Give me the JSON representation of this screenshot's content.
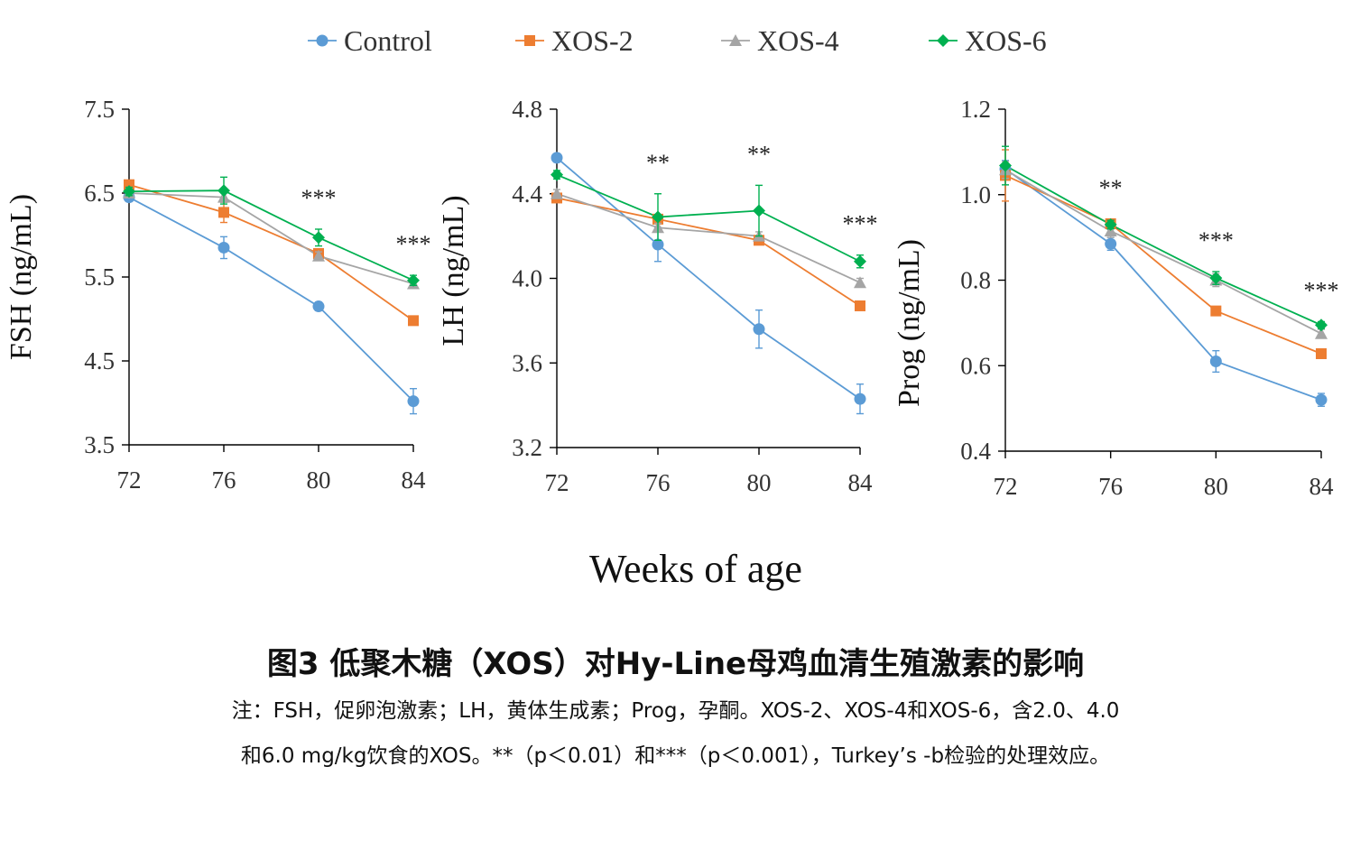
{
  "colors": {
    "control": "#5B9BD5",
    "xos2": "#ED7D31",
    "xos4": "#A5A5A5",
    "xos6": "#00B050",
    "axis": "#000000"
  },
  "legend": [
    "Control",
    "XOS-2",
    "XOS-4",
    "XOS-6"
  ],
  "shared_xlabel": "Weeks of age",
  "caption": {
    "title": "图3 低聚木糖（XOS）对Hy-Line母鸡血清生殖激素的影响",
    "note_line1": "注：FSH，促卵泡激素；LH，黄体生成素；Prog，孕酮。XOS-2、XOS-4和XOS-6，含2.0、4.0",
    "note_line2": "和6.0 mg/kg饮食的XOS。**（p＜0.01）和***（p＜0.001），Turkey’s -b检验的处理效应。"
  },
  "chart_data": [
    {
      "type": "line",
      "ylabel": "FSH (ng/mL)",
      "x": [
        72,
        76,
        80,
        84
      ],
      "ylim": [
        3.5,
        7.5
      ],
      "yticks": [
        "3.5",
        "4.5",
        "5.5",
        "6.5",
        "7.5"
      ],
      "series": [
        {
          "name": "Control",
          "values": [
            6.45,
            5.85,
            5.15,
            4.02
          ],
          "errors": [
            0.05,
            0.13,
            0.05,
            0.15
          ]
        },
        {
          "name": "XOS-2",
          "values": [
            6.6,
            6.27,
            5.78,
            4.98
          ],
          "errors": [
            0.05,
            0.12,
            0.05,
            0.04
          ]
        },
        {
          "name": "XOS-4",
          "values": [
            6.5,
            6.45,
            5.75,
            5.42
          ],
          "errors": [
            0.05,
            0.06,
            0.05,
            0.04
          ]
        },
        {
          "name": "XOS-6",
          "values": [
            6.52,
            6.53,
            5.97,
            5.46
          ],
          "errors": [
            0.05,
            0.16,
            0.1,
            0.06
          ]
        }
      ],
      "annotations": [
        {
          "x": 80,
          "text": "***"
        },
        {
          "x": 84,
          "text": "***"
        }
      ]
    },
    {
      "type": "line",
      "ylabel": "LH (ng/mL)",
      "x": [
        72,
        76,
        80,
        84
      ],
      "ylim": [
        3.2,
        4.8
      ],
      "yticks": [
        "3.2",
        "3.6",
        "4.0",
        "4.4",
        "4.8"
      ],
      "series": [
        {
          "name": "Control",
          "values": [
            4.57,
            4.16,
            3.76,
            3.43
          ],
          "errors": [
            0.02,
            0.08,
            0.09,
            0.07
          ]
        },
        {
          "name": "XOS-2",
          "values": [
            4.38,
            4.28,
            4.18,
            3.87
          ],
          "errors": [
            0.02,
            0.02,
            0.02,
            0.02
          ]
        },
        {
          "name": "XOS-4",
          "values": [
            4.4,
            4.24,
            4.2,
            3.98
          ],
          "errors": [
            0.02,
            0.02,
            0.02,
            0.02
          ]
        },
        {
          "name": "XOS-6",
          "values": [
            4.49,
            4.29,
            4.32,
            4.08
          ],
          "errors": [
            0.02,
            0.11,
            0.12,
            0.03
          ]
        }
      ],
      "annotations": [
        {
          "x": 76,
          "text": "**"
        },
        {
          "x": 80,
          "text": "**"
        },
        {
          "x": 84,
          "text": "***"
        }
      ]
    },
    {
      "type": "line",
      "ylabel": "Prog (ng/mL)",
      "x": [
        72,
        76,
        80,
        84
      ],
      "ylim": [
        0.4,
        1.2
      ],
      "yticks": [
        "0.4",
        "0.6",
        "0.8",
        "1.0",
        "1.2"
      ],
      "series": [
        {
          "name": "Control",
          "values": [
            1.06,
            0.885,
            0.61,
            0.52
          ],
          "errors": [
            0.02,
            0.015,
            0.025,
            0.015
          ]
        },
        {
          "name": "XOS-2",
          "values": [
            1.045,
            0.932,
            0.728,
            0.628
          ],
          "errors": [
            0.06,
            0.01,
            0.01,
            0.01
          ]
        },
        {
          "name": "XOS-4",
          "values": [
            1.058,
            0.915,
            0.8,
            0.675
          ],
          "errors": [
            0.02,
            0.015,
            0.015,
            0.01
          ]
        },
        {
          "name": "XOS-6",
          "values": [
            1.068,
            0.93,
            0.805,
            0.695
          ],
          "errors": [
            0.045,
            0.01,
            0.015,
            0.008
          ]
        }
      ],
      "annotations": [
        {
          "x": 76,
          "text": "**"
        },
        {
          "x": 80,
          "text": "***"
        },
        {
          "x": 84,
          "text": "***"
        }
      ]
    }
  ]
}
